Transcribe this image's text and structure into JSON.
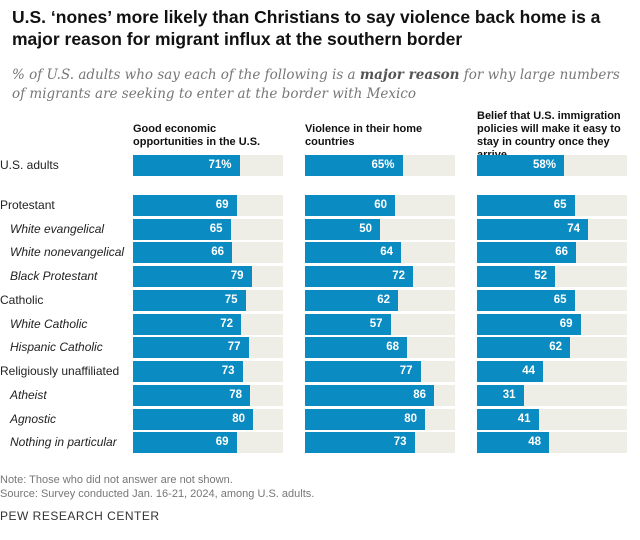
{
  "chart_data": {
    "type": "bar",
    "title": "U.S. ‘nones’ more likely than Christians to say violence back home is a major reason for migrant influx at the southern border",
    "subtitle_pre": "% of U.S. adults who say each of the following is a ",
    "subtitle_bold": "major reason",
    "subtitle_post": " for why large numbers of migrants are seeking to enter at the border with Mexico",
    "xlim": [
      0,
      100
    ],
    "categories": [
      "U.S. adults",
      "Protestant",
      "White evangelical",
      "White nonevangelical",
      "Black Protestant",
      "Catholic",
      "White Catholic",
      "Hispanic Catholic",
      "Religiously unaffiliated",
      "Atheist",
      "Agnostic",
      "Nothing in particular"
    ],
    "italic": [
      false,
      false,
      true,
      true,
      true,
      false,
      true,
      true,
      false,
      true,
      true,
      true
    ],
    "series": [
      {
        "name": "Good economic opportunities in the U.S.",
        "values": [
          71,
          69,
          65,
          66,
          79,
          75,
          72,
          77,
          73,
          78,
          80,
          69
        ]
      },
      {
        "name": "Violence in their home countries",
        "values": [
          65,
          60,
          50,
          64,
          72,
          62,
          57,
          68,
          77,
          86,
          80,
          73
        ]
      },
      {
        "name": "Belief that U.S. immigration policies will make it easy to stay in country once they arrive",
        "values": [
          58,
          65,
          74,
          66,
          52,
          65,
          69,
          62,
          44,
          31,
          41,
          48
        ]
      }
    ],
    "colors": {
      "bar": "#0a8bc1",
      "track": "#eeede6"
    },
    "notes": [
      "Note: Those who did not answer are not shown.",
      "Source: Survey conducted Jan. 16-21, 2024, among U.S. adults."
    ],
    "source_org": "PEW RESEARCH CENTER"
  }
}
